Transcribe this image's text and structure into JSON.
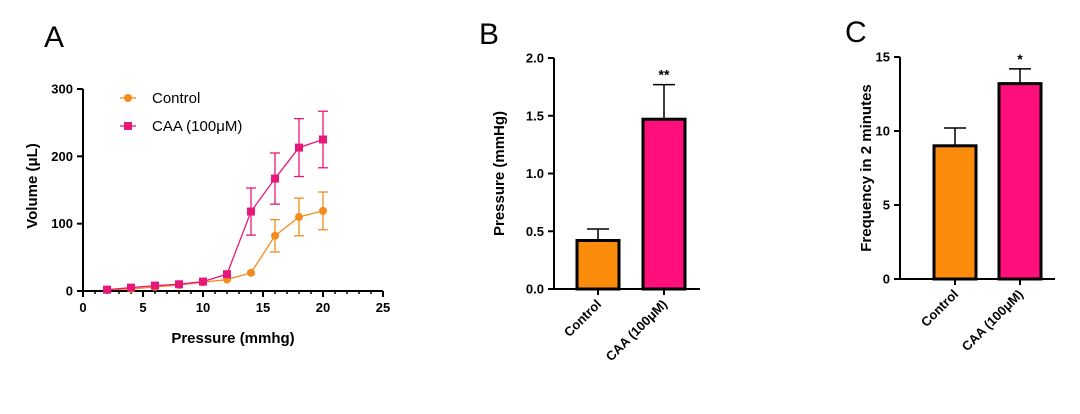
{
  "colors": {
    "control": "#f28c1e",
    "caa": "#e8177a",
    "bar_control": "#fb8c0b",
    "bar_caa": "#ff0f7b",
    "axis": "#000000"
  },
  "chart_data": [
    {
      "panel": "A",
      "type": "line",
      "xlabel": "Pressure (mmhg)",
      "ylabel": "Volume (μL)",
      "xlim": [
        0,
        25
      ],
      "ylim": [
        0,
        300
      ],
      "xticks": [
        0,
        5,
        10,
        15,
        20,
        25
      ],
      "yticks": [
        0,
        100,
        200,
        300
      ],
      "legend": "top-left",
      "grid": false,
      "series": [
        {
          "name": "Control",
          "marker": "circle",
          "x": [
            2,
            4,
            6,
            8,
            10,
            12,
            14,
            16,
            18,
            20
          ],
          "y": [
            2,
            3,
            6,
            9,
            13,
            17,
            27,
            82,
            110,
            119
          ],
          "err": [
            0,
            0,
            0,
            0,
            0,
            0,
            0,
            24,
            28,
            28
          ]
        },
        {
          "name": "CAA (100μM)",
          "marker": "square",
          "x": [
            2,
            4,
            6,
            8,
            10,
            12,
            14,
            16,
            18,
            20
          ],
          "y": [
            2,
            5,
            8,
            10,
            14,
            25,
            118,
            167,
            213,
            225
          ],
          "err": [
            0,
            0,
            0,
            0,
            0,
            0,
            35,
            38,
            43,
            42
          ]
        }
      ]
    },
    {
      "panel": "B",
      "type": "bar",
      "ylabel": "Pressure (mmHg)",
      "categories": [
        "Control",
        "CAA (100μM)"
      ],
      "values": [
        0.42,
        1.47
      ],
      "err": [
        0.1,
        0.3
      ],
      "significance": [
        "",
        "**"
      ],
      "ylim": [
        0,
        2.0
      ],
      "yticks": [
        "0.0",
        "0.5",
        "1.0",
        "1.5",
        "2.0"
      ]
    },
    {
      "panel": "C",
      "type": "bar",
      "ylabel": "Frequency in 2 minutes",
      "categories": [
        "Control",
        "CAA (100μM)"
      ],
      "values": [
        9.0,
        13.2
      ],
      "err": [
        1.2,
        1.0
      ],
      "significance": [
        "",
        "*"
      ],
      "ylim": [
        0,
        15
      ],
      "yticks": [
        "0",
        "5",
        "10",
        "15"
      ]
    }
  ]
}
